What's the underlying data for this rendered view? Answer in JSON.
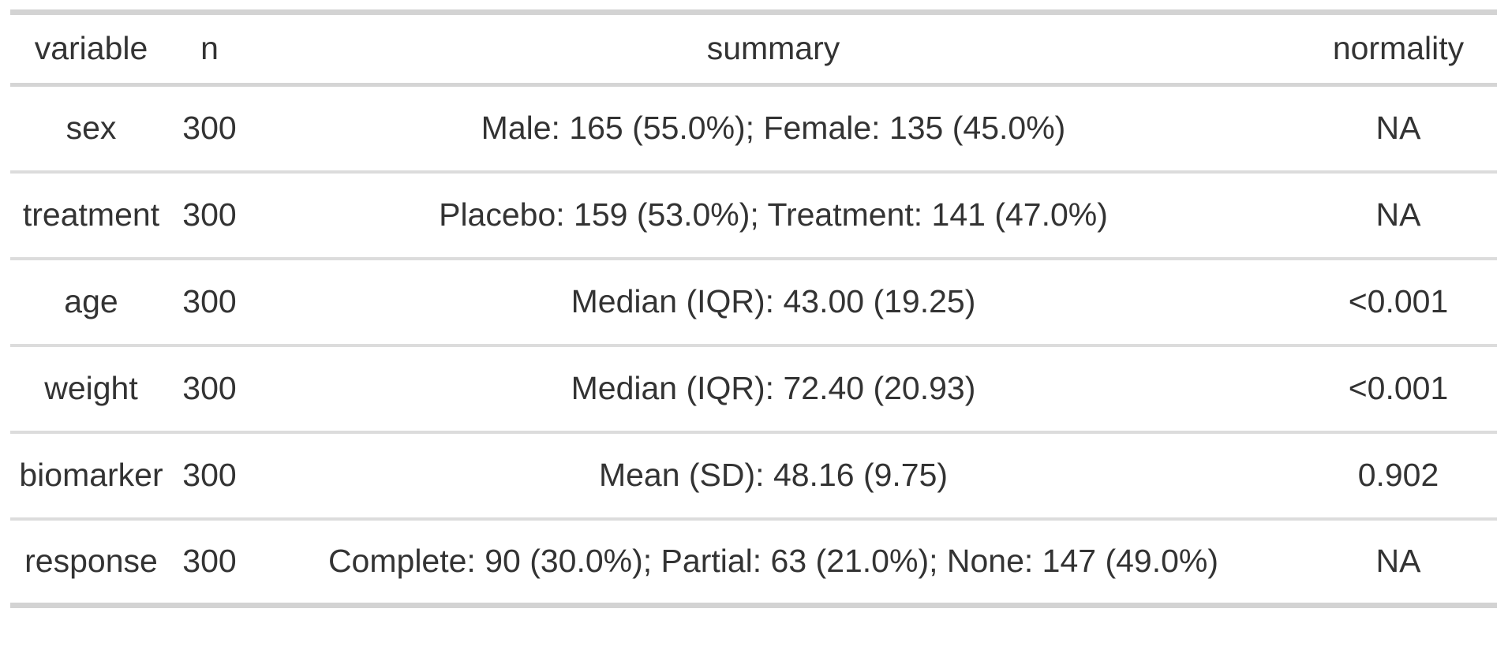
{
  "table": {
    "columns": [
      {
        "key": "variable",
        "label": "variable"
      },
      {
        "key": "n",
        "label": "n"
      },
      {
        "key": "summary",
        "label": "summary"
      },
      {
        "key": "normality",
        "label": "normality"
      }
    ],
    "rows": [
      {
        "variable": "sex",
        "n": "300",
        "summary": "Male: 165 (55.0%); Female: 135 (45.0%)",
        "normality": "NA"
      },
      {
        "variable": "treatment",
        "n": "300",
        "summary": "Placebo: 159 (53.0%); Treatment: 141 (47.0%)",
        "normality": "NA"
      },
      {
        "variable": "age",
        "n": "300",
        "summary": "Median (IQR): 43.00 (19.25)",
        "normality": "<0.001"
      },
      {
        "variable": "weight",
        "n": "300",
        "summary": "Median (IQR): 72.40 (20.93)",
        "normality": "<0.001"
      },
      {
        "variable": "biomarker",
        "n": "300",
        "summary": "Mean (SD): 48.16 (9.75)",
        "normality": "0.902"
      },
      {
        "variable": "response",
        "n": "300",
        "summary": "Complete: 90 (30.0%); Partial: 63 (21.0%); None: 147 (49.0%)",
        "normality": "NA"
      }
    ]
  },
  "colors": {
    "border_outer": "#d3d3d3",
    "border_header": "#d5d5d5",
    "border_row": "#dcdcdc",
    "text": "#333333",
    "background": "#ffffff"
  },
  "chart_data": {
    "type": "table",
    "columns": [
      "variable",
      "n",
      "summary",
      "normality"
    ],
    "rows": [
      [
        "sex",
        300,
        "Male: 165 (55.0%); Female: 135 (45.0%)",
        "NA"
      ],
      [
        "treatment",
        300,
        "Placebo: 159 (53.0%); Treatment: 141 (47.0%)",
        "NA"
      ],
      [
        "age",
        300,
        "Median (IQR): 43.00 (19.25)",
        "<0.001"
      ],
      [
        "weight",
        300,
        "Median (IQR): 72.40 (20.93)",
        "<0.001"
      ],
      [
        "biomarker",
        300,
        "Mean (SD): 48.16 (9.75)",
        "0.902"
      ],
      [
        "response",
        300,
        "Complete: 90 (30.0%); Partial: 63 (21.0%); None: 147 (49.0%)",
        "NA"
      ]
    ]
  }
}
